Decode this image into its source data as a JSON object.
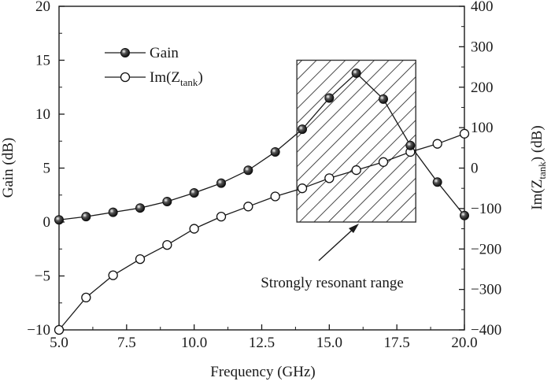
{
  "chart_data": {
    "type": "line",
    "x": [
      5,
      6,
      7,
      8,
      9,
      10,
      11,
      12,
      13,
      14,
      15,
      16,
      17,
      18,
      19,
      20
    ],
    "series": [
      {
        "name": "Gain",
        "axis": "left",
        "marker": "filled-circle",
        "values": [
          0.2,
          0.5,
          0.9,
          1.3,
          1.9,
          2.7,
          3.6,
          4.8,
          6.5,
          8.6,
          11.5,
          13.8,
          11.4,
          7.1,
          3.7,
          0.6
        ]
      },
      {
        "name_main": "Im(Z",
        "name_sub": "tank",
        "name_close": ")",
        "axis": "right",
        "marker": "open-circle",
        "values": [
          -400,
          -320,
          -265,
          -225,
          -190,
          -150,
          -120,
          -95,
          -70,
          -50,
          -25,
          -5,
          15,
          40,
          60,
          85
        ]
      }
    ],
    "xlabel": "Frequency (GHz)",
    "x_ticks": [
      "5.0",
      "7.5",
      "10.0",
      "12.5",
      "15.0",
      "17.5",
      "20.0"
    ],
    "x_tick_values": [
      5,
      7.5,
      10,
      12.5,
      15,
      17.5,
      20
    ],
    "xlim": [
      5,
      20
    ],
    "ylabel_left": "Gain (dB)",
    "ylim_left": [
      -10,
      20
    ],
    "y_ticks_left": [
      "−10",
      "−5",
      "0",
      "5",
      "10",
      "15",
      "20"
    ],
    "y_tick_values_left": [
      -10,
      -5,
      0,
      5,
      10,
      15,
      20
    ],
    "ylabel_right_main": "Im(Z",
    "ylabel_right_sub": "tank",
    "ylabel_right_close": ") (dB)",
    "ylim_right": [
      -400,
      400
    ],
    "y_ticks_right": [
      "−400",
      "−300",
      "−200",
      "−100",
      "0",
      "100",
      "200",
      "300",
      "400"
    ],
    "y_tick_values_right": [
      -400,
      -300,
      -200,
      -100,
      0,
      100,
      200,
      300,
      400
    ],
    "hatched_region": {
      "x_range": [
        13.8,
        18.2
      ],
      "y_range_left": [
        0,
        15
      ]
    },
    "annotation": {
      "text": "Strongly resonant range",
      "points_to": {
        "x": 16,
        "y_left": 2
      }
    },
    "legend_position": "top-left",
    "grid": false
  }
}
